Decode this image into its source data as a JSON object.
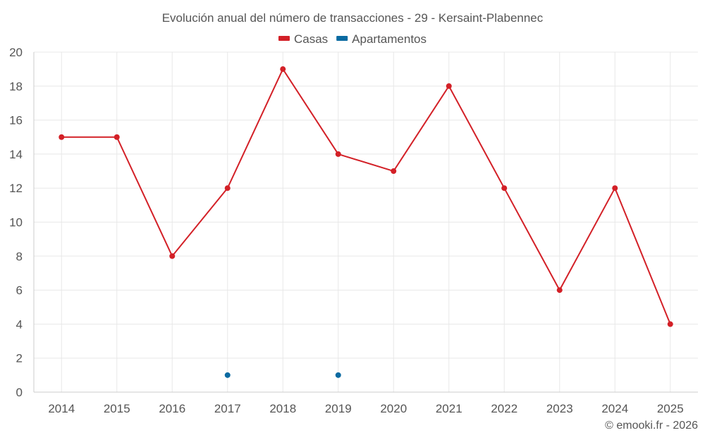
{
  "chart_data": {
    "type": "line",
    "title": "Evolución anual del número de transacciones - 29 - Kersaint-Plabennec",
    "categories": [
      "2014",
      "2015",
      "2016",
      "2017",
      "2018",
      "2019",
      "2020",
      "2021",
      "2022",
      "2023",
      "2024",
      "2025"
    ],
    "series": [
      {
        "name": "Casas",
        "color": "#d32027",
        "values": [
          15,
          15,
          8,
          12,
          19,
          14,
          13,
          18,
          12,
          6,
          12,
          4
        ]
      },
      {
        "name": "Apartamentos",
        "color": "#0a6aa1",
        "values": [
          null,
          null,
          null,
          1,
          null,
          1,
          null,
          null,
          null,
          null,
          null,
          null
        ]
      }
    ],
    "ylim": [
      0,
      20
    ],
    "yticks": [
      0,
      2,
      4,
      6,
      8,
      10,
      12,
      14,
      16,
      18,
      20
    ],
    "grid": true,
    "legend": "top-center",
    "xlabel": "",
    "ylabel": ""
  },
  "credit": "© emooki.fr - 2026"
}
